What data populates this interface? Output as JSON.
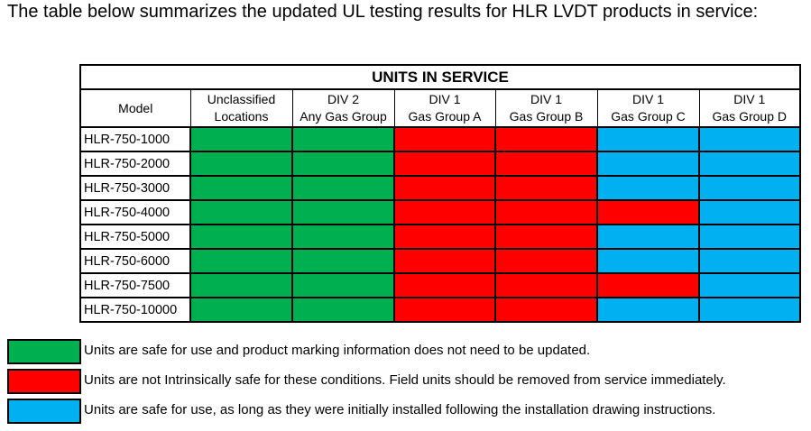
{
  "intro_text": "The table below summarizes the updated UL testing results for HLR LVDT products in service:",
  "table": {
    "title": "UNITS IN SERVICE",
    "columns": [
      {
        "line1": "Model",
        "line2": ""
      },
      {
        "line1": "Unclassified",
        "line2": "Locations"
      },
      {
        "line1": "DIV 2",
        "line2": "Any Gas Group"
      },
      {
        "line1": "DIV 1",
        "line2": "Gas Group A"
      },
      {
        "line1": "DIV 1",
        "line2": "Gas Group B"
      },
      {
        "line1": "DIV 1",
        "line2": "Gas Group C"
      },
      {
        "line1": "DIV 1",
        "line2": "Gas Group D"
      }
    ],
    "rows": [
      {
        "model": "HLR-750-1000",
        "status": [
          "green",
          "green",
          "red",
          "red",
          "blue",
          "blue"
        ]
      },
      {
        "model": "HLR-750-2000",
        "status": [
          "green",
          "green",
          "red",
          "red",
          "blue",
          "blue"
        ]
      },
      {
        "model": "HLR-750-3000",
        "status": [
          "green",
          "green",
          "red",
          "red",
          "blue",
          "blue"
        ]
      },
      {
        "model": "HLR-750-4000",
        "status": [
          "green",
          "green",
          "red",
          "red",
          "red",
          "blue"
        ]
      },
      {
        "model": "HLR-750-5000",
        "status": [
          "green",
          "green",
          "red",
          "red",
          "blue",
          "blue"
        ]
      },
      {
        "model": "HLR-750-6000",
        "status": [
          "green",
          "green",
          "red",
          "red",
          "blue",
          "blue"
        ]
      },
      {
        "model": "HLR-750-7500",
        "status": [
          "green",
          "green",
          "red",
          "red",
          "red",
          "blue"
        ]
      },
      {
        "model": "HLR-750-10000",
        "status": [
          "green",
          "green",
          "red",
          "red",
          "blue",
          "blue"
        ]
      }
    ]
  },
  "legend": [
    {
      "status": "green",
      "color": "#00b050",
      "text": "Units are safe for use and product marking information does not need to be updated."
    },
    {
      "status": "red",
      "color": "#ff0000",
      "text": "Units are not Intrinsically safe for these conditions.  Field units should be removed from service immediately."
    },
    {
      "status": "blue",
      "color": "#00b0f0",
      "text": "Units are safe for use, as long as they were initially installed following the installation drawing instructions."
    }
  ]
}
